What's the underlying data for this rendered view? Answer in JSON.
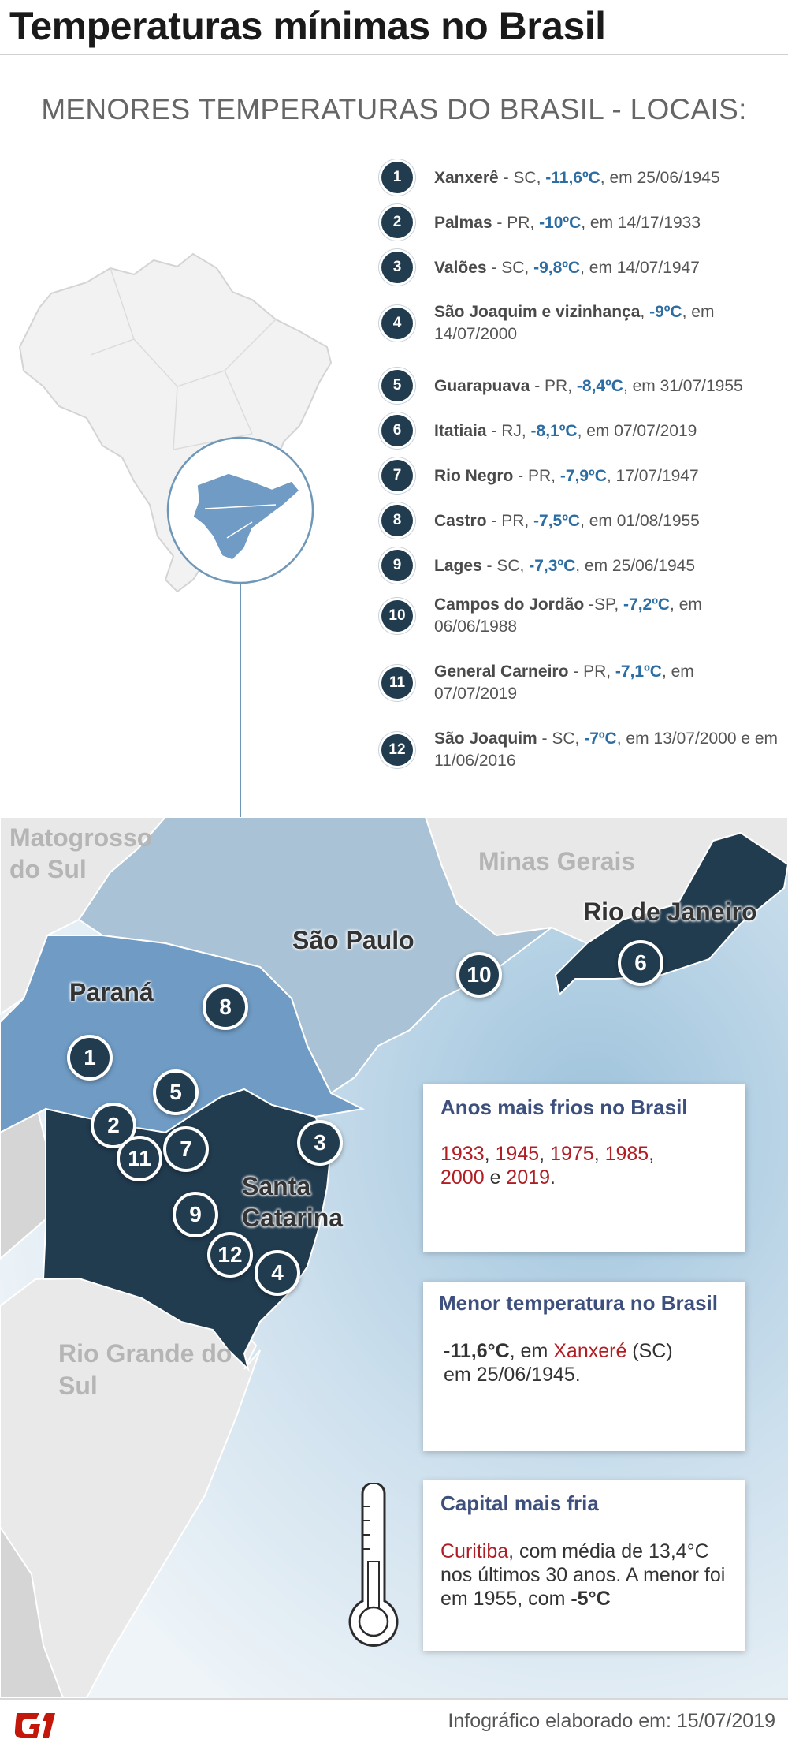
{
  "header": {
    "title": "Temperaturas mínimas no Brasil"
  },
  "subtitle": "MENORES TEMPERATURAS DO BRASIL - LOCAIS:",
  "records": [
    {
      "rank": "1",
      "place": "Xanxerê",
      "pre": " - SC, ",
      "temp": "-11,6ºC",
      "post": ", em 25/06/1945"
    },
    {
      "rank": "2",
      "place": "Palmas",
      "pre": " - PR, ",
      "temp": "-10ºC",
      "post": ", em 14/17/1933"
    },
    {
      "rank": "3",
      "place": "Valões",
      "pre": " - SC, ",
      "temp": "-9,8ºC",
      "post": ", em 14/07/1947"
    },
    {
      "rank": "4",
      "place": "São Joaquim e vizinhança",
      "pre": ", ",
      "temp": "-9ºC",
      "post": ", em 14/07/2000"
    },
    {
      "rank": "5",
      "place": "Guarapuava",
      "pre": " - PR, ",
      "temp": "-8,4ºC",
      "post": ", em 31/07/1955"
    },
    {
      "rank": "6",
      "place": "Itatiaia",
      "pre": " - RJ, ",
      "temp": "-8,1ºC",
      "post": ", em 07/07/2019"
    },
    {
      "rank": "7",
      "place": "Rio Negro",
      "pre": " - PR, ",
      "temp": "-7,9ºC",
      "post": ", 17/07/1947"
    },
    {
      "rank": "8",
      "place": "Castro",
      "pre": " - PR, ",
      "temp": "-7,5ºC",
      "post": ", em 01/08/1955"
    },
    {
      "rank": "9",
      "place": "Lages",
      "pre": " - SC, ",
      "temp": "-7,3ºC",
      "post": ", em 25/06/1945"
    },
    {
      "rank": "10",
      "place": "Campos do Jordão",
      "pre": " -SP, ",
      "temp": "-7,2ºC",
      "post": ", em 06/06/1988"
    },
    {
      "rank": "11",
      "place": "General Carneiro",
      "pre": " - PR, ",
      "temp": "-7,1ºC",
      "post": ", em 07/07/2019"
    },
    {
      "rank": "12",
      "place": "São Joaquim",
      "pre": " - SC, ",
      "temp": "-7ºC",
      "post": ", em 13/07/2000 e em 11/06/2016"
    }
  ],
  "map": {
    "states": {
      "ms": "Matogrosso do Sul",
      "mg": "Minas Gerais",
      "rj": "Rio de Janeiro",
      "sp": "São Paulo",
      "pr": "Paraná",
      "sc": "Santa Catarina",
      "rs": "Rio Grande do Sul"
    },
    "pins": [
      "1",
      "2",
      "3",
      "4",
      "5",
      "6",
      "7",
      "8",
      "9",
      "10",
      "11",
      "12"
    ],
    "colors": {
      "parana": "#6f9bc4",
      "saopaulo": "#a9c2d6",
      "dark": "#213b4f",
      "neighbor": "#e8e8e8",
      "sea": "#b9d4e6"
    }
  },
  "boxes": {
    "coldest_years": {
      "title": "Anos mais frios no Brasil",
      "y1": "1933",
      "y2": "1945",
      "y3": "1975",
      "y4": "1985",
      "y5": "2000",
      "y6": "2019",
      "sep": ", ",
      "and": " e ",
      "end": "."
    },
    "lowest_temp": {
      "title": "Menor temperatura no Brasil",
      "temp": "-11,6°C",
      "mid": ", em ",
      "city": "Xanxeré",
      "state": " (SC)",
      "date": "em 25/06/1945."
    },
    "coldest_capital": {
      "title": "Capital mais fria",
      "city": "Curitiba",
      "text": ", com média de 13,4°C nos últimos 30 anos. A menor foi em 1955, com ",
      "temp": "-5°C"
    }
  },
  "footer": {
    "logo": "G1",
    "credit": "Infográfico elaborado em: 15/07/2019"
  }
}
